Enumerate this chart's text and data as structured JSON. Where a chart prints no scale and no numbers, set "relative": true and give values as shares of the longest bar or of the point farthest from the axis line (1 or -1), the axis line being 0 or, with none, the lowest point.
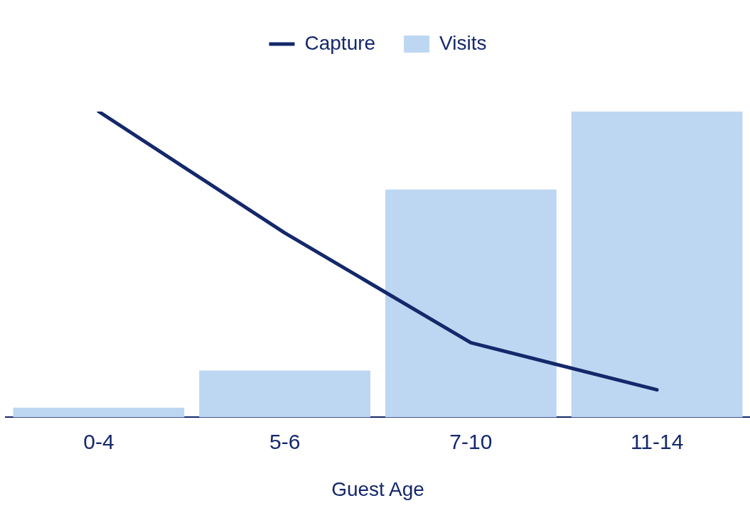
{
  "chart_data": {
    "type": "bar",
    "relative": true,
    "xlabel": "Guest Age",
    "categories": [
      "0-4",
      "5-6",
      "7-10",
      "11-14"
    ],
    "legend": "top",
    "grid": false,
    "series": [
      {
        "name": "Capture",
        "type": "line",
        "color": "#14286b",
        "values": [
          1.0,
          0.603,
          0.244,
          0.09
        ]
      },
      {
        "name": "Visits",
        "color": "#bdd7f2",
        "values": [
          0.032,
          0.153,
          0.745,
          1.0
        ]
      }
    ]
  }
}
